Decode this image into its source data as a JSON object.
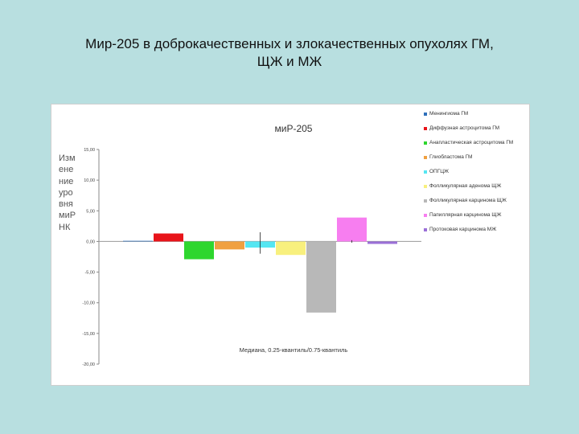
{
  "slide": {
    "title_line1": "Мир-205 в доброкачественных и злокачественных опухолях ГМ,",
    "title_line2": "ЩЖ и МЖ"
  },
  "chart_data": {
    "type": "bar",
    "title": "миР-205",
    "ylabel": "Изменение уровня миРНК",
    "xlabel": "Медиана, 0.25-квантиль/0.75-квантиль",
    "ylim": [
      -20,
      15
    ],
    "ytick_step": 5,
    "ytick_labels": [
      "15,00",
      "10,00",
      "5,00",
      "0,00",
      "-5,00",
      "-10,00",
      "-15,00",
      "-20,00"
    ],
    "grid": false,
    "legend_position": "right",
    "categories": [
      "Менингиома ГМ",
      "Диффузная астроцитома ГМ",
      "Анапластическая астроцитома ГМ",
      "Глиобластома ГМ",
      "ОПГЦЖ",
      "Фолликулярная аденома ЩЖ",
      "Фолликулярная карцинома ЩЖ",
      "Папиллярная карцинома ЩЖ",
      "Протоковая карцинома МЖ"
    ],
    "colors": [
      "#2e6fba",
      "#e8141a",
      "#2ed62e",
      "#f0a040",
      "#55e6f2",
      "#f8f07e",
      "#b8b8b8",
      "#f77ef0",
      "#9b70d8"
    ],
    "values": [
      0.1,
      1.3,
      -2.9,
      -1.3,
      -1.0,
      -2.2,
      -11.6,
      3.9,
      -0.4
    ],
    "error_bars": [
      {
        "index": 4,
        "low": -2.0,
        "high": 1.5
      },
      {
        "index": 7,
        "low": -0.2,
        "high": 0.2
      }
    ]
  }
}
